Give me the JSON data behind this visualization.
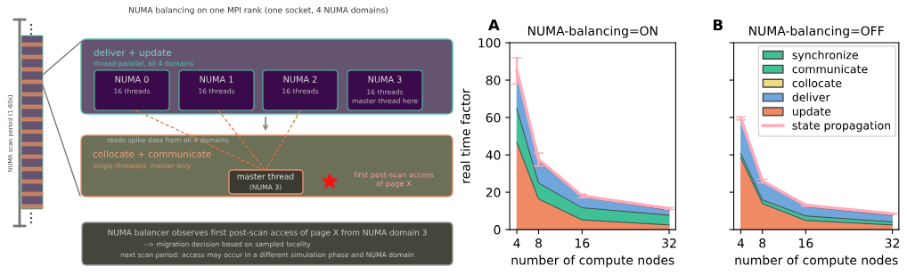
{
  "chart_data": [
    {
      "type": "other",
      "title": "NUMA balancing on one MPI rank (one socket, 4 NUMA domains)",
      "annotations": [
        "NUMA scan period (1-60s)",
        "deliver + update",
        "thread-parallel, all 4 domains",
        "NUMA 0",
        "16 threads",
        "NUMA 1",
        "16 threads",
        "NUMA 2",
        "16 threads",
        "NUMA 3",
        "16 threads",
        "master thread here",
        "reads spike data from all 4 domains",
        "collocate + communicate",
        "single-threaded, master only",
        "master thread",
        "(NUMA 3)",
        "first post-scan access\nof page X",
        "NUMA balancer observes first post-scan access of page X from NUMA domain 3",
        "--> migration decision based on sampled locality",
        "next scan period: access may occur in a different simulation phase and NUMA domain"
      ]
    },
    {
      "type": "area",
      "stacked": true,
      "title": "NUMA-balancing=ON",
      "annotations": [
        "A"
      ],
      "xlabel": "number of compute nodes",
      "ylabel": "real time factor",
      "x": [
        4,
        8,
        16,
        32
      ],
      "xlim": [
        2.7,
        33.2
      ],
      "xticks": [
        4,
        8,
        16,
        32
      ],
      "ylim": [
        0,
        100
      ],
      "yticks": [
        0,
        20,
        40,
        60,
        80,
        100
      ],
      "grid": false,
      "legend": false,
      "series": [
        {
          "color": "#ef8a65",
          "values": [
            46.6,
            16.4,
            5.2,
            2.5
          ]
        },
        {
          "color": "#40c096",
          "values": [
            null,
            null,
            null,
            null
          ]
        },
        {
          "color": "#40c096",
          "values": [
            18.1,
            8.5,
            6.5,
            5.2
          ]
        },
        {
          "color": "#f0dc82",
          "values": [
            null,
            null,
            null,
            null
          ]
        },
        {
          "color": "#6fa6dc",
          "values": [
            19.3,
            11.5,
            5.8,
            2.7
          ]
        },
        {
          "type": "line",
          "color": "#ffaabb",
          "values": [
            85,
            37.5,
            18,
            11.2
          ],
          "errors": [
            7,
            3.5,
            1,
            0.5
          ]
        }
      ]
    },
    {
      "type": "area",
      "stacked": true,
      "title": "NUMA-balancing=OFF",
      "annotations": [
        "B"
      ],
      "xlabel": "number of compute nodes",
      "x": [
        4,
        8,
        16,
        32
      ],
      "xlim": [
        2.7,
        33.2
      ],
      "xticks": [
        4,
        8,
        16,
        32
      ],
      "ylim": [
        0,
        100
      ],
      "yticks": [
        0,
        20,
        40,
        60,
        80,
        100
      ],
      "tick_labels": "x",
      "grid": false,
      "legend": "top right",
      "series": [
        {
          "name": "update",
          "color": "#ef8a65",
          "values": [
            38.4,
            13.9,
            4.9,
            2.5
          ]
        },
        {
          "name": "communicate",
          "color": "#40c096",
          "values": [
            null,
            null,
            null,
            null
          ]
        },
        {
          "name": "synchronize",
          "color": "#40c096",
          "values": [
            2.2,
            2.0,
            2.4,
            1.6
          ]
        },
        {
          "name": "collocate",
          "color": "#f0dc82",
          "values": [
            null,
            null,
            null,
            null
          ]
        },
        {
          "name": "deliver",
          "color": "#6fa6dc",
          "values": [
            18.6,
            9.9,
            5.0,
            3.5
          ]
        },
        {
          "name": "state propagation",
          "type": "line",
          "color": "#ffaabb",
          "values": [
            59.5,
            26,
            13,
            8.5
          ],
          "errors": [
            0.8,
            1,
            0.5,
            0.3
          ]
        }
      ]
    }
  ]
}
